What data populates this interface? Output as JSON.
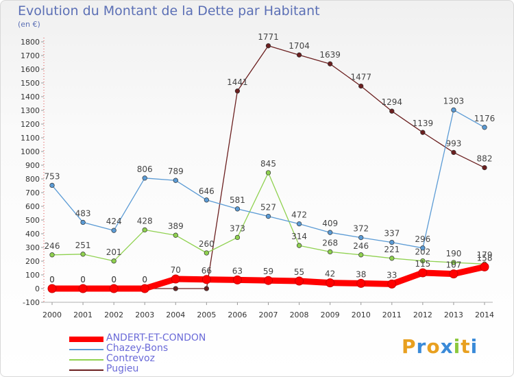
{
  "title": "Evolution du Montant de la Dette par Habitant",
  "unit": "(en €)",
  "logo": {
    "letters": [
      "P",
      "r",
      "o",
      "x",
      "i",
      "t",
      "i"
    ],
    "colors": [
      "#e8a020",
      "#3a8ad8",
      "#e8a020",
      "#3a8ad8",
      "#8cc83c",
      "#e8a020",
      "#3a8ad8"
    ]
  },
  "chart_data": {
    "type": "line",
    "title": "Evolution du Montant de la Dette par Habitant",
    "ylabel": "(en €)",
    "x": [
      "2000",
      "2001",
      "2002",
      "2003",
      "2004",
      "2005",
      "2006",
      "2007",
      "2008",
      "2009",
      "2010",
      "2011",
      "2012",
      "2013",
      "2014"
    ],
    "ylim": [
      -100,
      1800
    ],
    "yticks": [
      -100,
      0,
      100,
      200,
      300,
      400,
      500,
      600,
      700,
      800,
      900,
      1000,
      1100,
      1200,
      1300,
      1400,
      1500,
      1600,
      1700,
      1800
    ],
    "grid": false,
    "legend_position": "bottom",
    "series": [
      {
        "name": "ANDERT-ET-CONDON",
        "color": "#ff0000",
        "values": [
          0,
          0,
          0,
          0,
          70,
          66,
          63,
          59,
          55,
          42,
          38,
          33,
          115,
          107,
          158
        ]
      },
      {
        "name": "Chazey-Bons",
        "color": "#5b9bd5",
        "values": [
          753,
          483,
          424,
          806,
          789,
          646,
          581,
          527,
          472,
          409,
          372,
          337,
          296,
          1303,
          1176
        ]
      },
      {
        "name": "Contrevoz",
        "color": "#8fd14f",
        "values": [
          246,
          251,
          201,
          428,
          389,
          260,
          373,
          845,
          314,
          268,
          246,
          221,
          202,
          190,
          179
        ]
      },
      {
        "name": "Pugieu",
        "color": "#6b1f1f",
        "values": [
          0,
          0,
          0,
          0,
          0,
          0,
          1441,
          1771,
          1704,
          1639,
          1477,
          1294,
          1139,
          993,
          882
        ]
      }
    ]
  }
}
